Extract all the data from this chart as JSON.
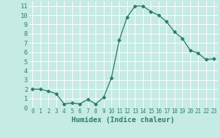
{
  "x": [
    0,
    1,
    2,
    3,
    4,
    5,
    6,
    7,
    8,
    9,
    10,
    11,
    12,
    13,
    14,
    15,
    16,
    17,
    18,
    19,
    20,
    21,
    22,
    23
  ],
  "y": [
    2,
    2,
    1.8,
    1.5,
    0.4,
    0.5,
    0.4,
    0.9,
    0.4,
    1.1,
    3.2,
    7.3,
    9.8,
    11.0,
    11.0,
    10.4,
    10.0,
    9.3,
    8.2,
    7.5,
    6.2,
    5.9,
    5.2,
    5.3
  ],
  "line_color": "#2e7d6e",
  "marker": "D",
  "marker_size": 2.2,
  "linewidth": 1.0,
  "bg_color": "#c5ebe4",
  "grid_color": "#ffffff",
  "xlabel": "Humidex (Indice chaleur)",
  "xlabel_fontsize": 7.5,
  "xlabel_color": "#2e7d6e",
  "tick_color": "#2e7d6e",
  "tick_fontsize": 5.5,
  "ytick_fontsize": 6.5,
  "xlim": [
    -0.5,
    23.5
  ],
  "ylim": [
    0,
    11.5
  ],
  "xticks": [
    0,
    1,
    2,
    3,
    4,
    5,
    6,
    7,
    8,
    9,
    10,
    11,
    12,
    13,
    14,
    15,
    16,
    17,
    18,
    19,
    20,
    21,
    22,
    23
  ],
  "yticks": [
    0,
    1,
    2,
    3,
    4,
    5,
    6,
    7,
    8,
    9,
    10,
    11
  ]
}
